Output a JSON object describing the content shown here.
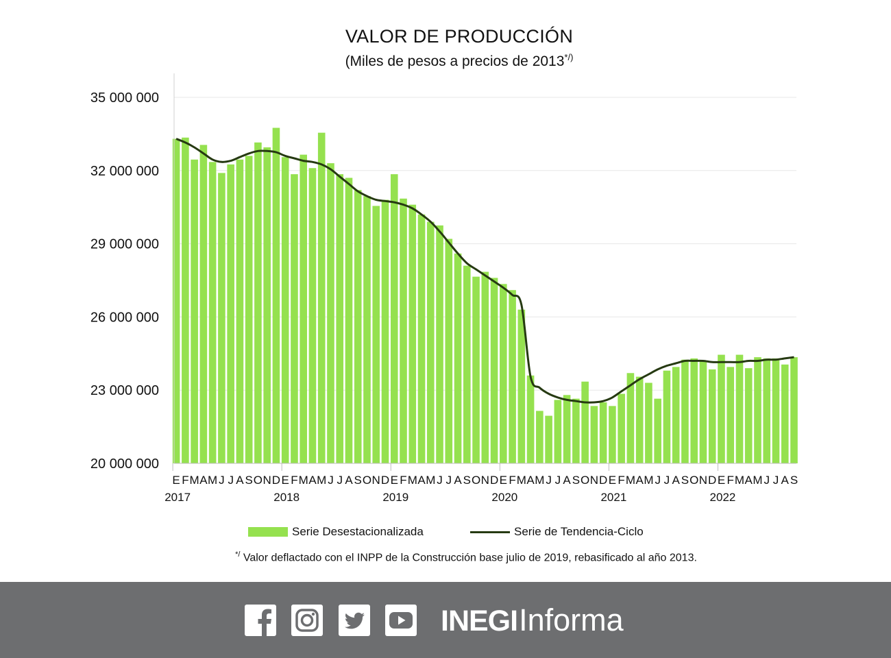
{
  "title": "VALOR DE PRODUCCIÓN",
  "subtitle": "(Miles de pesos a precios de 2013",
  "subtitle_mark": "*/)",
  "legend": {
    "bars": "Serie Desestacionalizada",
    "line": "Serie de Tendencia-Ciclo"
  },
  "footnote_mark": "*/",
  "footnote": "Valor deflactado con el INPP de la Construcción base julio de 2019, rebasificado al año 2013.",
  "colors": {
    "bars": "#95e14f",
    "line": "#263a12",
    "footer": "#6d6e70"
  },
  "footer": {
    "icons": [
      "facebook-icon",
      "instagram-icon",
      "twitter-icon",
      "youtube-icon"
    ],
    "brand_bold": "INEGI",
    "brand_regular": "Informa"
  },
  "chart_data": {
    "type": "bar",
    "title": "VALOR DE PRODUCCIÓN",
    "subtitle": "(Miles de pesos a precios de 2013*/)",
    "ylim": [
      20000000,
      35000000
    ],
    "yticks": [
      "35 000 000",
      "32 000 000",
      "29 000 000",
      "26 000 000",
      "23 000 000",
      "20 000 000"
    ],
    "ytick_values": [
      35000000,
      32000000,
      29000000,
      26000000,
      23000000,
      20000000
    ],
    "grid": true,
    "legend_position": "bottom",
    "categories": [
      "E",
      "F",
      "M",
      "A",
      "M",
      "J",
      "J",
      "A",
      "S",
      "O",
      "N",
      "D",
      "E",
      "F",
      "M",
      "A",
      "M",
      "J",
      "J",
      "A",
      "S",
      "O",
      "N",
      "D",
      "E",
      "F",
      "M",
      "A",
      "M",
      "J",
      "J",
      "A",
      "S",
      "O",
      "N",
      "D",
      "E",
      "F",
      "M",
      "A",
      "M",
      "J",
      "J",
      "A",
      "S",
      "O",
      "N",
      "D",
      "E",
      "F",
      "M",
      "A",
      "M",
      "J",
      "J",
      "A",
      "S",
      "O",
      "N",
      "D",
      "E",
      "F",
      "M",
      "A",
      "M",
      "J",
      "J",
      "A",
      "S"
    ],
    "years": [
      {
        "label": "2017",
        "index": 0
      },
      {
        "label": "2018",
        "index": 12
      },
      {
        "label": "2019",
        "index": 24
      },
      {
        "label": "2020",
        "index": 36
      },
      {
        "label": "2021",
        "index": 48
      },
      {
        "label": "2022",
        "index": 60
      }
    ],
    "series": [
      {
        "name": "Serie Desestacionalizada",
        "kind": "bar",
        "values": [
          33300000,
          33350000,
          32450000,
          33050000,
          32350000,
          31900000,
          32250000,
          32450000,
          32600000,
          33150000,
          32950000,
          33750000,
          32550000,
          31850000,
          32650000,
          32100000,
          33550000,
          32300000,
          31850000,
          31700000,
          31200000,
          30950000,
          30550000,
          30800000,
          31850000,
          30850000,
          30600000,
          30200000,
          29900000,
          29750000,
          29200000,
          28600000,
          28100000,
          27650000,
          27850000,
          27600000,
          27350000,
          27100000,
          26300000,
          23600000,
          22150000,
          21950000,
          22600000,
          22800000,
          22650000,
          23350000,
          22350000,
          22500000,
          22350000,
          22850000,
          23700000,
          23550000,
          23300000,
          22650000,
          23800000,
          23950000,
          24250000,
          24300000,
          24200000,
          23850000,
          24450000,
          23950000,
          24450000,
          23900000,
          24350000,
          24300000,
          24300000,
          24050000,
          24350000
        ]
      },
      {
        "name": "Serie de Tendencia-Ciclo",
        "kind": "line",
        "values": [
          33300000,
          33150000,
          32950000,
          32700000,
          32450000,
          32350000,
          32400000,
          32550000,
          32700000,
          32800000,
          32800000,
          32750000,
          32600000,
          32500000,
          32400000,
          32350000,
          32250000,
          32050000,
          31750000,
          31450000,
          31150000,
          30950000,
          30800000,
          30750000,
          30700000,
          30600000,
          30450000,
          30200000,
          29900000,
          29500000,
          29050000,
          28600000,
          28200000,
          27950000,
          27700000,
          27450000,
          27200000,
          26900000,
          26500000,
          23550000,
          23100000,
          22850000,
          22700000,
          22600000,
          22550000,
          22500000,
          22500000,
          22550000,
          22700000,
          22950000,
          23200000,
          23450000,
          23650000,
          23850000,
          24000000,
          24100000,
          24200000,
          24200000,
          24200000,
          24150000,
          24150000,
          24150000,
          24150000,
          24200000,
          24200000,
          24250000,
          24250000,
          24300000,
          24350000
        ]
      }
    ]
  }
}
